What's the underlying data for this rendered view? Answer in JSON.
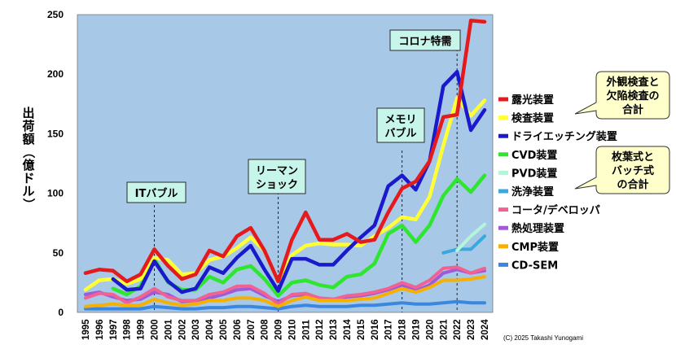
{
  "chart_data": {
    "type": "line",
    "ylabel": "出荷額（億ドル）",
    "ylim": [
      0,
      250
    ],
    "yticks": [
      0,
      50,
      100,
      150,
      200,
      250
    ],
    "grid": false,
    "legend_position": "right",
    "x": [
      "1995",
      "1996",
      "1997",
      "1998",
      "1999",
      "2000",
      "2001",
      "2002",
      "2003",
      "2004",
      "2005",
      "2006",
      "2007",
      "2008",
      "2009",
      "2010",
      "2011",
      "2012",
      "2013",
      "2014",
      "2015",
      "2016",
      "2017",
      "2018",
      "2019",
      "2020",
      "2021",
      "2022",
      "2023",
      "2024"
    ],
    "series": [
      {
        "name": "露光装置",
        "color": "#e41a1c",
        "width": 4.5,
        "values": [
          33,
          36,
          35,
          26,
          32,
          53,
          39,
          28,
          32,
          52,
          47,
          64,
          71,
          52,
          26,
          61,
          84,
          61,
          61,
          66,
          59,
          61,
          84,
          104,
          110,
          127,
          164,
          166,
          245,
          244
        ]
      },
      {
        "name": "検査装置",
        "color": "#ffff33",
        "width": 4.5,
        "values": [
          19,
          27,
          28,
          24,
          28,
          46,
          44,
          32,
          33,
          44,
          47,
          54,
          63,
          52,
          26,
          48,
          56,
          58,
          57,
          57,
          56,
          64,
          71,
          80,
          78,
          97,
          140,
          180,
          165,
          178
        ]
      },
      {
        "name": "ドライエッチング装置",
        "color": "#1a1acc",
        "width": 4.5,
        "values": [
          null,
          null,
          28,
          19,
          20,
          43,
          26,
          17,
          20,
          38,
          33,
          46,
          56,
          36,
          18,
          45,
          45,
          40,
          40,
          52,
          63,
          73,
          106,
          115,
          103,
          127,
          190,
          202,
          153,
          170
        ]
      },
      {
        "name": "CVD装置",
        "color": "#2ee62e",
        "width": 4.5,
        "values": [
          null,
          null,
          20,
          15,
          22,
          45,
          25,
          19,
          19,
          30,
          25,
          36,
          39,
          28,
          14,
          25,
          27,
          23,
          21,
          30,
          32,
          41,
          66,
          73,
          59,
          73,
          98,
          112,
          101,
          115
        ]
      },
      {
        "name": "PVD装置",
        "color": "#b3f5d9",
        "width": 4,
        "values": [
          null,
          null,
          null,
          null,
          null,
          null,
          null,
          null,
          null,
          null,
          null,
          null,
          null,
          null,
          null,
          null,
          null,
          null,
          null,
          null,
          null,
          null,
          null,
          null,
          null,
          null,
          null,
          52,
          64,
          74
        ]
      },
      {
        "name": "洗浄装置",
        "color": "#38a8dd",
        "width": 4,
        "values": [
          null,
          null,
          null,
          null,
          null,
          null,
          null,
          null,
          null,
          null,
          null,
          null,
          null,
          null,
          null,
          null,
          null,
          null,
          null,
          null,
          null,
          null,
          null,
          null,
          null,
          null,
          50,
          53,
          53,
          64
        ]
      },
      {
        "name": "コータ/デベロッパ",
        "color": "#f06292",
        "width": 4,
        "values": [
          12,
          16,
          15,
          8,
          13,
          20,
          13,
          10,
          10,
          15,
          17,
          22,
          22,
          16,
          7,
          15,
          16,
          12,
          11,
          14,
          15,
          17,
          20,
          25,
          21,
          27,
          37,
          38,
          33,
          37
        ]
      },
      {
        "name": "熱処理装置",
        "color": "#a05ad8",
        "width": 4,
        "values": [
          15,
          17,
          13,
          10,
          11,
          17,
          15,
          9,
          10,
          12,
          15,
          19,
          20,
          14,
          9,
          14,
          15,
          12,
          11,
          13,
          14,
          16,
          19,
          23,
          18,
          23,
          33,
          36,
          33,
          35
        ]
      },
      {
        "name": "CMP装置",
        "color": "#f5b000",
        "width": 4,
        "values": [
          5,
          6,
          7,
          6,
          6,
          11,
          8,
          6,
          7,
          10,
          10,
          12,
          12,
          10,
          5,
          10,
          13,
          10,
          10,
          10,
          11,
          12,
          16,
          20,
          17,
          21,
          27,
          27,
          28,
          30
        ]
      },
      {
        "name": "CD-SEM",
        "color": "#3a86e0",
        "width": 4,
        "values": [
          3,
          3,
          3,
          3,
          3,
          5,
          4,
          3,
          3,
          4,
          4,
          5,
          5,
          4,
          3,
          5,
          6,
          5,
          5,
          5,
          6,
          6,
          7,
          8,
          7,
          7,
          8,
          9,
          8,
          8
        ]
      }
    ],
    "annotations": [
      {
        "text": [
          "ITバブル"
        ],
        "year": "2000"
      },
      {
        "text": [
          "リーマン",
          "ショック"
        ],
        "year": "2009"
      },
      {
        "text": [
          "メモリ",
          "バブル"
        ],
        "year": "2018"
      },
      {
        "text": [
          "コロナ特需"
        ],
        "year": "2022"
      }
    ],
    "callouts": [
      {
        "text": [
          "外観検査と",
          "欠陥検査の",
          "合計"
        ]
      },
      {
        "text": [
          "枚葉式と",
          "バッチ式",
          "の合計"
        ]
      }
    ],
    "copyright": "(C) 2025 Takashi Yunogami"
  }
}
